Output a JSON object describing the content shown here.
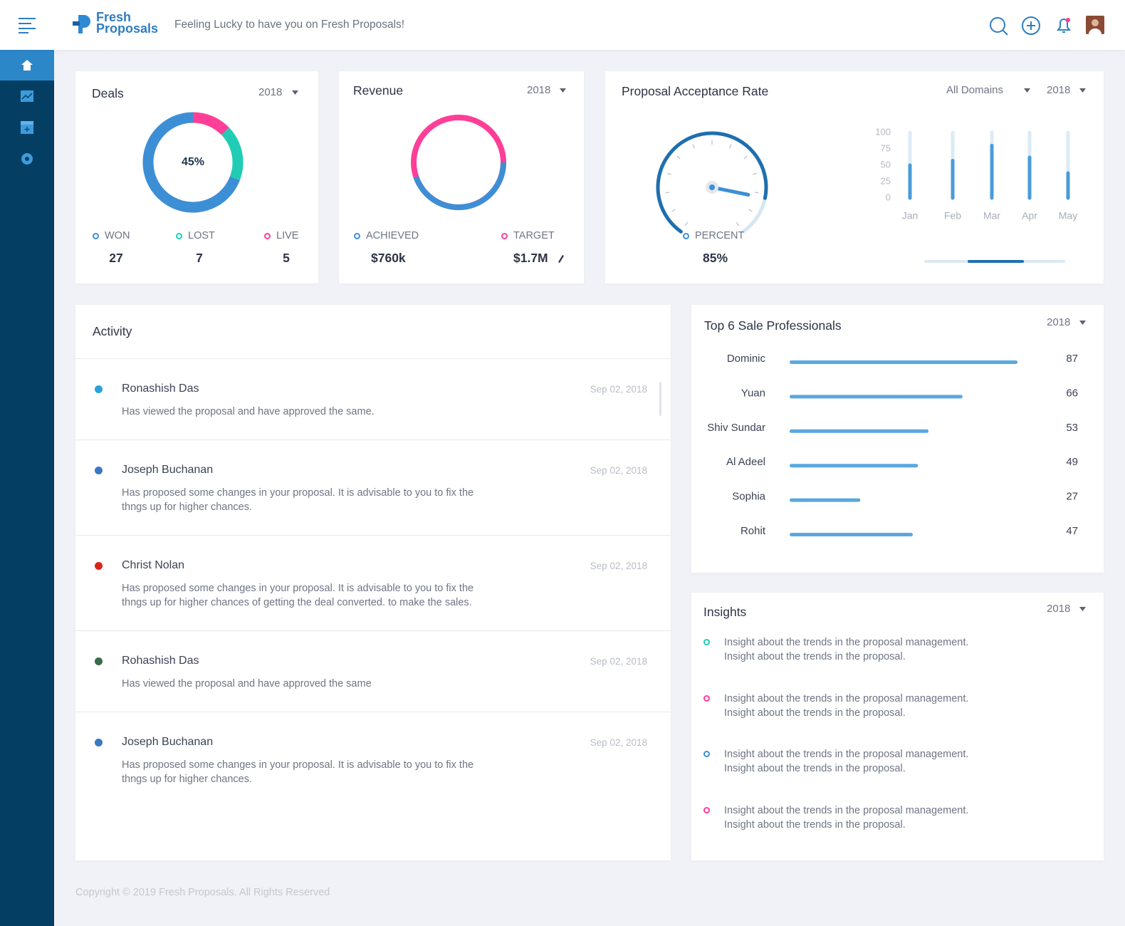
{
  "header": {
    "brand_line1": "Fresh",
    "brand_line2": "Proposals",
    "tagline": "Feeling Lucky to have you on Fresh Proposals!"
  },
  "deals": {
    "title": "Deals",
    "year": "2018",
    "center_label": "45%",
    "items": [
      {
        "name": "WON",
        "value": 27,
        "color": "#3d8fd5"
      },
      {
        "name": "LOST",
        "value": 7,
        "color": "#20cdb4"
      },
      {
        "name": "LIVE",
        "value": 5,
        "color": "#ff3e98"
      }
    ]
  },
  "revenue": {
    "title": "Revenue",
    "year": "2018",
    "achieved": {
      "name": "ACHIEVED",
      "value": 760000,
      "label": "$760k",
      "color": "#3d8fd5"
    },
    "target": {
      "name": "TARGET",
      "value": 1700000,
      "label": "$1.7M",
      "color": "#ff3e98"
    }
  },
  "acceptance": {
    "title": "Proposal Acceptance Rate",
    "domain_filter": "All Domains",
    "year": "2018",
    "percent": {
      "name": "PERCENT",
      "value": 85,
      "label": "85%",
      "color": "#1f6fae"
    },
    "monthly": {
      "categories": [
        "Jan",
        "Feb",
        "Mar",
        "Apr",
        "May"
      ],
      "values": [
        50,
        57,
        80,
        62,
        38
      ],
      "ylim": [
        0,
        100
      ],
      "yticks": [
        0,
        25,
        50,
        75,
        100
      ],
      "color": "#4a9bd8"
    }
  },
  "top_sales": {
    "title": "Top 6 Sale Professionals",
    "year": "2018",
    "xlim": [
      0,
      100
    ],
    "color": "#5aa7e0",
    "people": [
      {
        "name": "Dominic",
        "value": 87
      },
      {
        "name": "Yuan",
        "value": 66
      },
      {
        "name": "Shiv Sundar",
        "value": 53
      },
      {
        "name": "Al Adeel",
        "value": 49
      },
      {
        "name": "Sophia",
        "value": 27
      },
      {
        "name": "Rohit",
        "value": 47
      }
    ]
  },
  "activity": {
    "title": "Activity",
    "items": [
      {
        "name": "Ronashish Das",
        "text": "Has viewed the proposal and have approved the same.",
        "date": "Sep 02, 2018"
      },
      {
        "name": "Joseph Buchanan",
        "text": "Has proposed some changes in your proposal. It is advisable to you to fix the thngs up for higher chances.",
        "date": "Sep 02, 2018"
      },
      {
        "name": "Christ Nolan",
        "text": "Has proposed some changes in your proposal. It is advisable to you to fix the thngs up for higher chances of getting the deal converted. to make the sales.",
        "date": "Sep 02, 2018"
      },
      {
        "name": "Rohashish Das",
        "text": "Has viewed the proposal and have approved the same",
        "date": "Sep 02, 2018"
      },
      {
        "name": "Joseph Buchanan",
        "text": "Has proposed some changes in your proposal. It is advisable to you to fix the thngs up for higher chances.",
        "date": "Sep 02, 2018"
      }
    ]
  },
  "insights": {
    "title": "Insights",
    "year": "2018",
    "items": [
      {
        "text": "Insight about the trends in the proposal management. Insight about the trends in the proposal.",
        "color": "#20cdb4"
      },
      {
        "text": "Insight about the trends in the proposal management. Insight about the trends in the proposal.",
        "color": "#ff3e98"
      },
      {
        "text": "Insight about the trends in the proposal management. Insight about the trends in the proposal.",
        "color": "#3d8fd5"
      },
      {
        "text": "Insight about the trends in the proposal management. Insight about the trends in the proposal.",
        "color": "#ff3e98"
      }
    ]
  },
  "footer": {
    "copyright": "Copyright © 2019 Fresh Proposals. All Rights Reserved"
  }
}
